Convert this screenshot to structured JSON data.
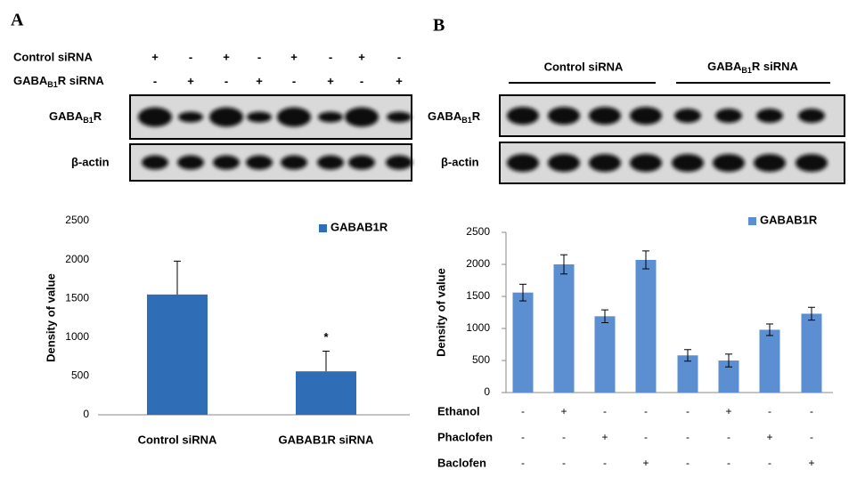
{
  "panel_labels": [
    "A",
    "B"
  ],
  "blot_a": {
    "rows": [
      {
        "label": "Control siRNA",
        "signs": [
          "+",
          "-",
          "+",
          "-",
          "+",
          "-",
          "+",
          "-"
        ]
      },
      {
        "label": {
          "main": "GABA",
          "sub": "B1",
          "tail": "R siRNA"
        },
        "signs": [
          "-",
          "+",
          "-",
          "+",
          "-",
          "+",
          "-",
          "+"
        ]
      }
    ],
    "bands": [
      {
        "main": "GABA",
        "sub": "B1",
        "tail": "R"
      },
      "β-actin"
    ]
  },
  "blot_b": {
    "groups": [
      "Control siRNA",
      {
        "main": "GABA",
        "sub": "B1",
        "tail": "R siRNA"
      }
    ],
    "bands": [
      {
        "main": "GABA",
        "sub": "B1",
        "tail": "R"
      },
      "β-actin"
    ]
  },
  "chart_data": [
    {
      "type": "bar",
      "y_label": "Density of value",
      "categories": [
        "Control siRNA",
        "GABAB1R siRNA"
      ],
      "series": [
        {
          "name": "GABAB1R",
          "color": "#2f6db6",
          "values": [
            1550,
            560
          ],
          "errors": [
            430,
            260
          ]
        }
      ],
      "annotation": "*",
      "ylim": [
        0,
        2500
      ],
      "yticks": [
        0,
        500,
        1000,
        1500,
        2000,
        2500
      ],
      "grid": false,
      "legend": "top-right"
    },
    {
      "type": "bar",
      "y_label": "Density of value",
      "categories": [
        null,
        null,
        null,
        null,
        null,
        null,
        null,
        null
      ],
      "series": [
        {
          "name": "GABAB1R",
          "color": "#5b8fd2",
          "values": [
            1560,
            2000,
            1190,
            2070,
            580,
            500,
            980,
            1230
          ],
          "errors": [
            130,
            150,
            100,
            140,
            90,
            100,
            90,
            100
          ]
        }
      ],
      "conditions": [
        {
          "name": "Ethanol",
          "signs": [
            "-",
            "+",
            "-",
            "-",
            "-",
            "+",
            "-",
            "-"
          ]
        },
        {
          "name": "Phaclofen",
          "signs": [
            "-",
            "-",
            "+",
            "-",
            "-",
            "-",
            "+",
            "-"
          ]
        },
        {
          "name": "Baclofen",
          "signs": [
            "-",
            "-",
            "-",
            "+",
            "-",
            "-",
            "-",
            "+"
          ]
        }
      ],
      "ylim": [
        0,
        2500
      ],
      "yticks": [
        0,
        500,
        1000,
        1500,
        2000,
        2500
      ],
      "grid": false,
      "legend": "top-right"
    }
  ]
}
